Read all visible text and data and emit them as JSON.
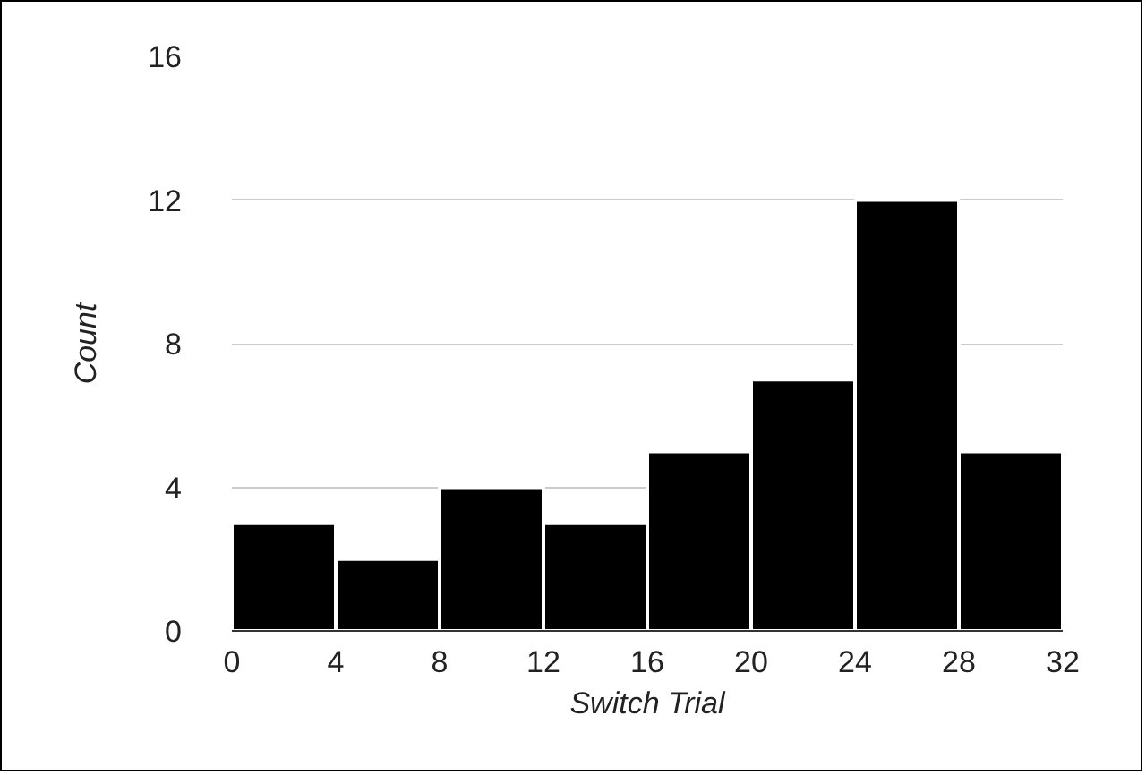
{
  "chart_data": {
    "type": "histogram",
    "xlabel": "Switch Trial",
    "ylabel": "Count",
    "bins": [
      0,
      4,
      8,
      12,
      16,
      20,
      24,
      28,
      32
    ],
    "values": [
      3,
      2,
      4,
      3,
      5,
      7,
      12,
      5
    ],
    "color": "#000000",
    "xlim": [
      0,
      32
    ],
    "ylim": [
      0,
      16
    ],
    "xticks": [
      0,
      4,
      8,
      12,
      16,
      20,
      24,
      28,
      32
    ],
    "yticks": [
      0,
      4,
      8,
      12,
      16
    ],
    "grid": "y"
  }
}
